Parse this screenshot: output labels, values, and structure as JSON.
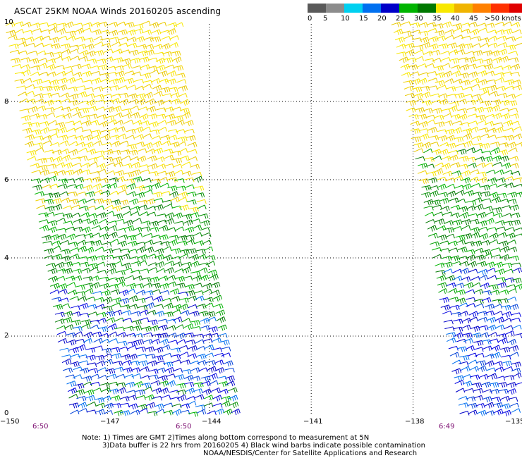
{
  "title": "ASCAT 25KM NOAA Winds 20160205 ascending",
  "legend": {
    "labels": [
      "0",
      "5",
      "10",
      "15",
      "20",
      "25",
      "30",
      "35",
      "40",
      "45",
      ">50 knots"
    ],
    "colors": [
      "#5a5a5a",
      "#8c8c8c",
      "#00d0f0",
      "#0070f0",
      "#0000c8",
      "#00b400",
      "#007800",
      "#f8e800",
      "#f0b400",
      "#ff8000",
      "#ff3000",
      "#e00000",
      "#a03010",
      "#602000",
      "#ff00ff",
      "#b000d8",
      "#500080"
    ]
  },
  "axes": {
    "lon_labels": [
      "−150",
      "−147",
      "−144",
      "−141",
      "−138",
      "−135"
    ],
    "lat_labels": [
      "0",
      "2",
      "4",
      "6",
      "8",
      "10"
    ],
    "time_labels": [
      "6:50",
      "6:50",
      "6:49"
    ]
  },
  "notes": [
    "Note: 1) Times are GMT 2)Times along bottom correspond to measurement at 5N",
    "3)Data buffer is 22 hrs from 20160205 4) Black wind barbs indicate possible contamination",
    "NOAA/NESDIS/Center for Satellite Applications and Research"
  ]
}
